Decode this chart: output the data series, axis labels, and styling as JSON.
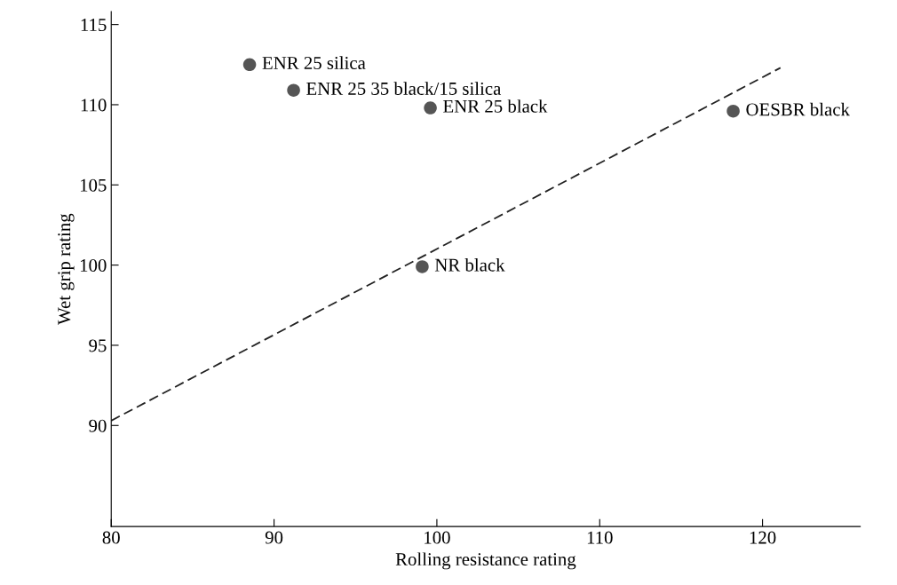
{
  "chart_data": {
    "type": "scatter",
    "xlabel": "Rolling resistance rating",
    "ylabel": "Wet grip rating",
    "xlim": [
      80,
      126
    ],
    "ylim": [
      83.7,
      115.8
    ],
    "xticks": [
      80,
      90,
      100,
      110,
      120
    ],
    "yticks": [
      90,
      95,
      100,
      105,
      110,
      115
    ],
    "grid": false,
    "legend": false,
    "marker": "circle",
    "series": [
      {
        "color": "#555555",
        "x": [
          88.5,
          91.2,
          99.6,
          118.2,
          99.1
        ],
        "values": [
          112.5,
          110.9,
          109.8,
          109.6,
          99.9
        ]
      },
      {
        "type": "line",
        "color": "#222222",
        "line_style": "dashed",
        "marker": "none",
        "x": [
          80,
          121.1
        ],
        "values": [
          90.3,
          112.3
        ]
      }
    ],
    "annotations": [
      {
        "text": "ENR 25 silica",
        "x": 88.5,
        "y": 112.5
      },
      {
        "text": "ENR 25 35 black/15 silica",
        "x": 91.2,
        "y": 110.9
      },
      {
        "text": "ENR 25 black",
        "x": 99.6,
        "y": 109.8
      },
      {
        "text": "OESBR black",
        "x": 118.2,
        "y": 109.6
      },
      {
        "text": "NR black",
        "x": 99.1,
        "y": 99.9
      }
    ]
  }
}
